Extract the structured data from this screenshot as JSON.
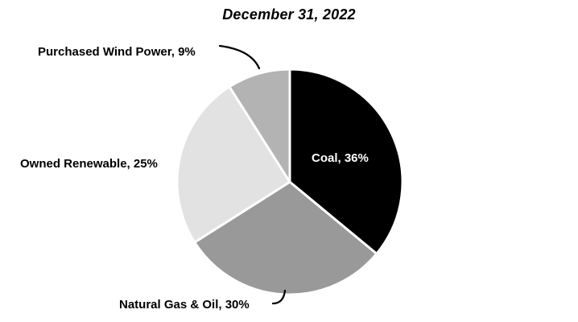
{
  "chart_data": {
    "type": "pie",
    "title": "December 31, 2022",
    "slices": [
      {
        "label": "Coal",
        "value": 36,
        "color": "#000000",
        "display": "Coal, 36%"
      },
      {
        "label": "Natural Gas & Oil",
        "value": 30,
        "color": "#999999",
        "display": "Natural Gas & Oil, 30%"
      },
      {
        "label": "Owned Renewable",
        "value": 25,
        "color": "#e2e2e2",
        "display": "Owned Renewable, 25%"
      },
      {
        "label": "Purchased Wind Power",
        "value": 9,
        "color": "#b3b3b3",
        "display": "Purchased Wind Power, 9%"
      }
    ],
    "start_angle_deg": 0,
    "direction": "clockwise",
    "slice_border_color": "#ffffff",
    "inside_label_color": "#ffffff",
    "outside_label_color": "#000000",
    "leader_line_color": "#000000",
    "legend_position": "none"
  }
}
